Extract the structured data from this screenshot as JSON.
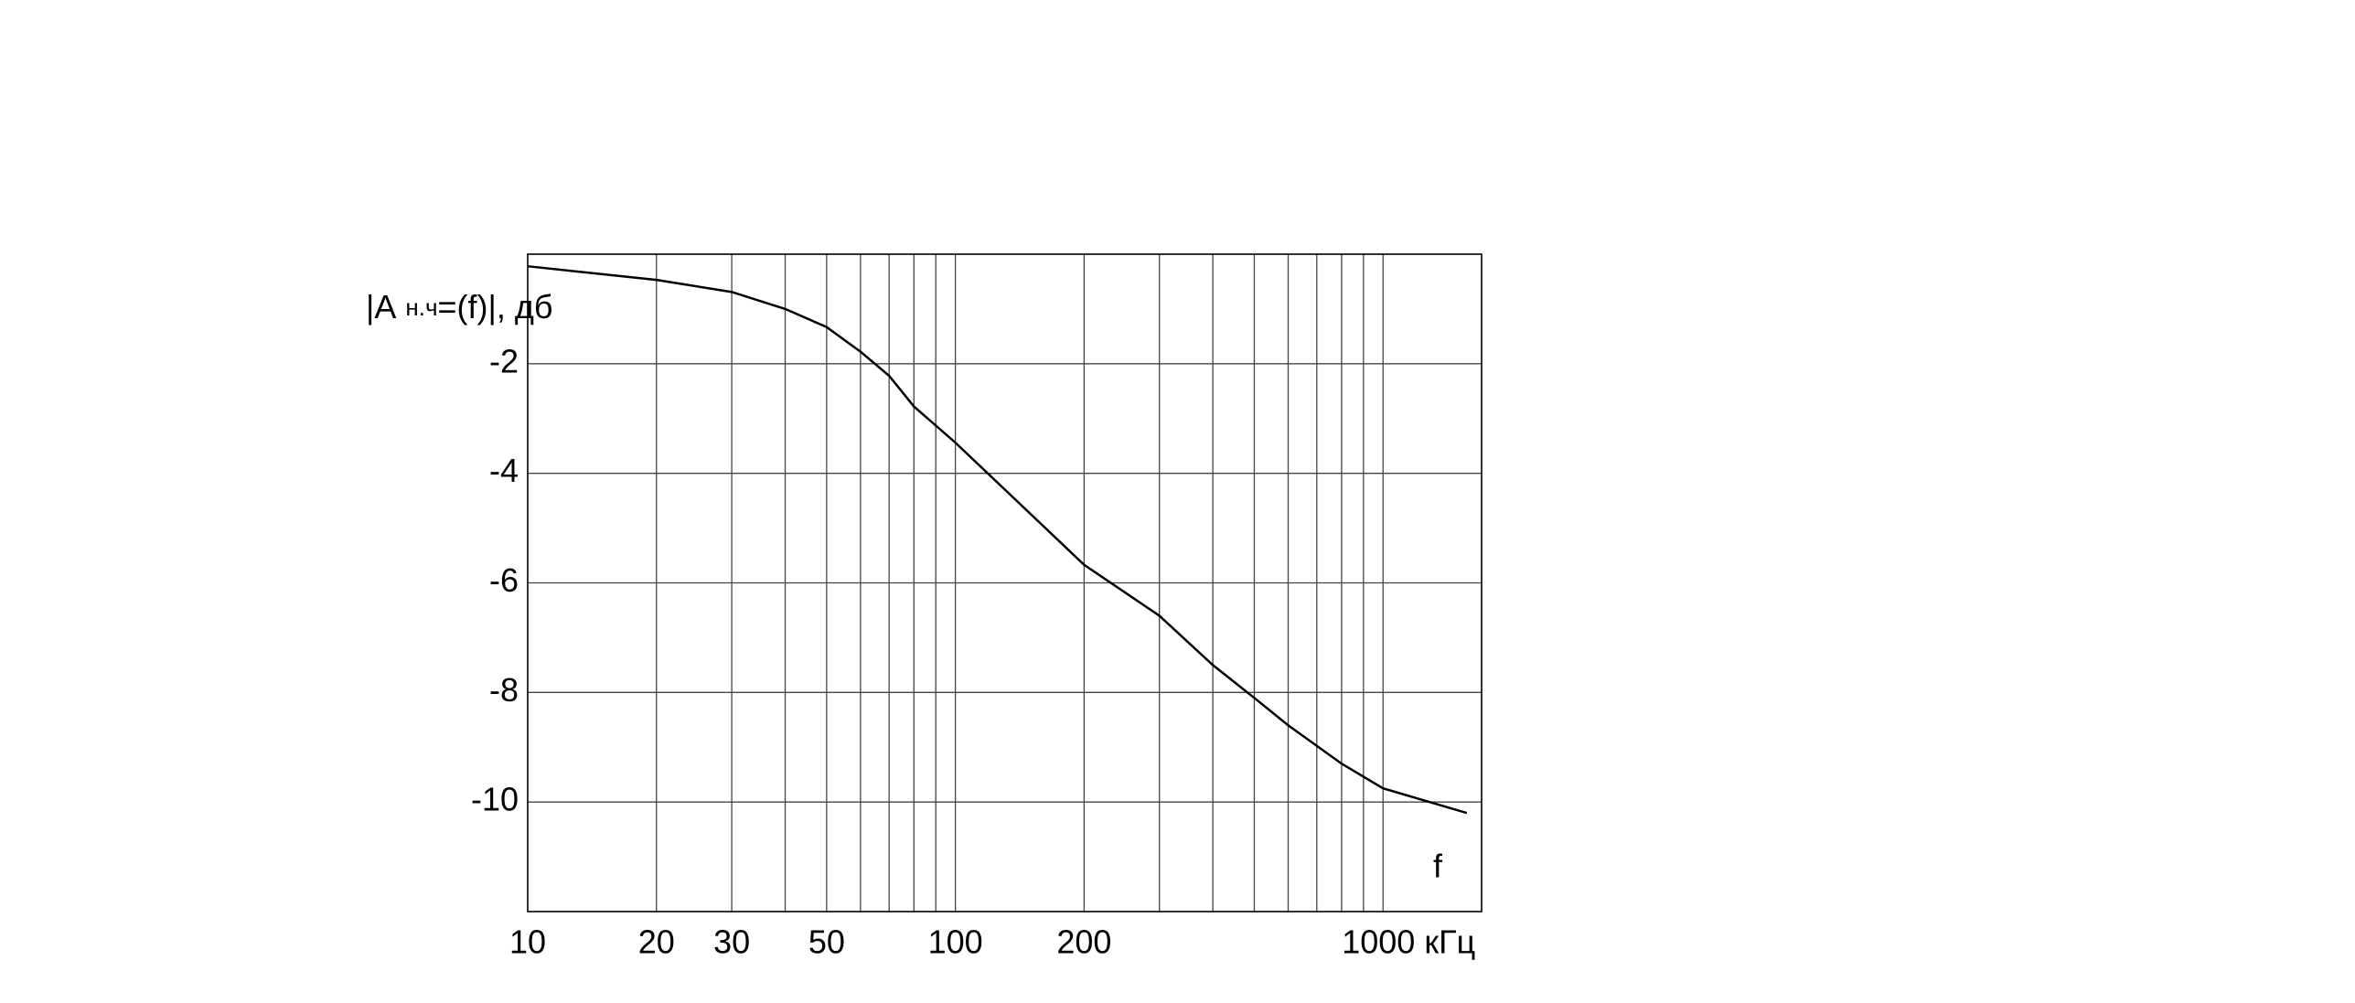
{
  "chart_data": {
    "type": "line",
    "y_label": "|A",
    "y_label_sub": "н.ч",
    "y_label_rest": "=(f)|, дб",
    "annotation": "f",
    "xscale": "log",
    "xlim": [
      10,
      1700
    ],
    "ylim": [
      -12,
      0
    ],
    "xticks": [
      10,
      20,
      30,
      50,
      100,
      200,
      {
        "value": 1000,
        "label": "1000 кГц"
      }
    ],
    "xgrid": [
      20,
      30,
      40,
      50,
      60,
      70,
      80,
      90,
      100,
      200,
      300,
      400,
      500,
      600,
      700,
      800,
      900,
      1000
    ],
    "yticks": [
      -2,
      -4,
      -6,
      -8,
      -10
    ],
    "grid": true,
    "series": [
      {
        "color": "#000000",
        "x": [
          10,
          20,
          30,
          40,
          50,
          60,
          70,
          80,
          100,
          200,
          300,
          400,
          500,
          600,
          800,
          1000,
          1570
        ],
        "values": [
          -0.22,
          -0.47,
          -0.69,
          -1.0,
          -1.33,
          -1.78,
          -2.22,
          -2.78,
          -3.44,
          -5.67,
          -6.6,
          -7.5,
          -8.1,
          -8.6,
          -9.3,
          -9.75,
          -10.2
        ]
      }
    ]
  }
}
